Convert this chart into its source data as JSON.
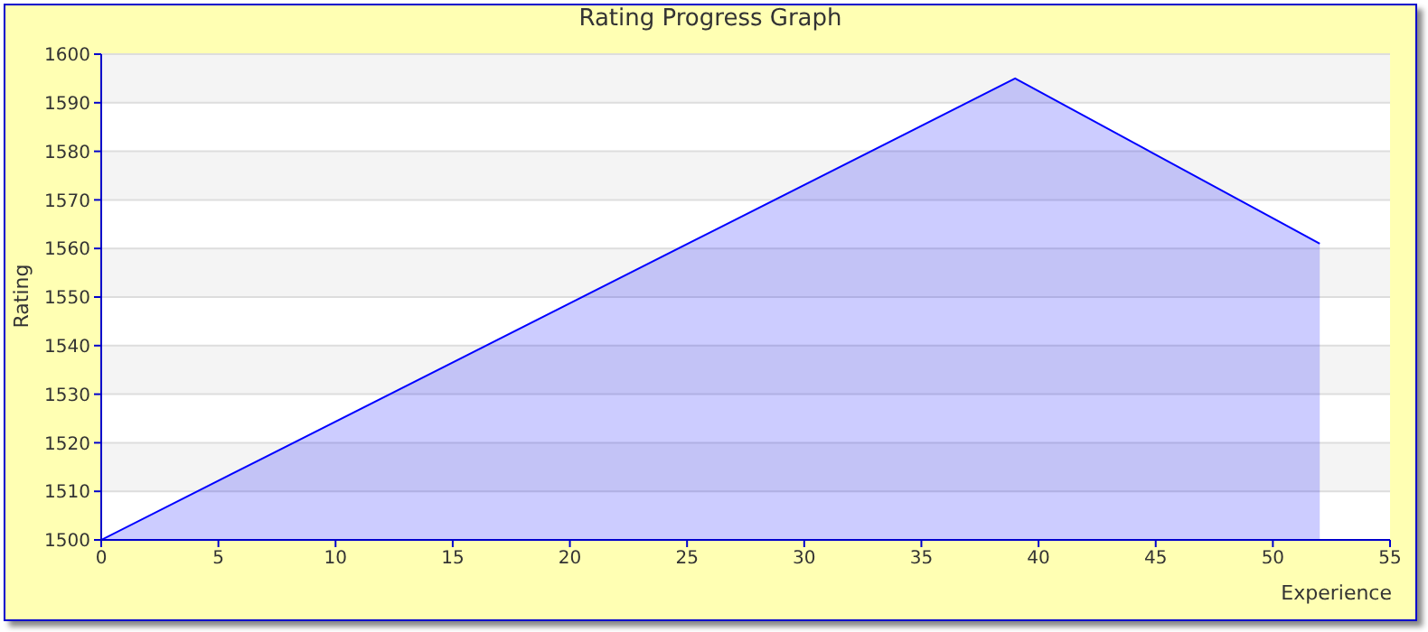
{
  "chart_data": {
    "type": "area",
    "title": "Rating Progress Graph",
    "xlabel": "Experience",
    "ylabel": "Rating",
    "x": [
      0,
      39,
      52
    ],
    "series": [
      {
        "color": "#0000ff",
        "values": [
          1500,
          1595,
          1561
        ]
      }
    ],
    "xlim": [
      0,
      55
    ],
    "xticks": [
      0,
      5,
      10,
      15,
      20,
      25,
      30,
      35,
      40,
      45,
      50,
      55
    ],
    "ylim": [
      1500,
      1600
    ],
    "yticks": [
      1500,
      1510,
      1520,
      1530,
      1540,
      1550,
      1560,
      1570,
      1580,
      1590,
      1600
    ],
    "grid": "y",
    "legend": false
  }
}
